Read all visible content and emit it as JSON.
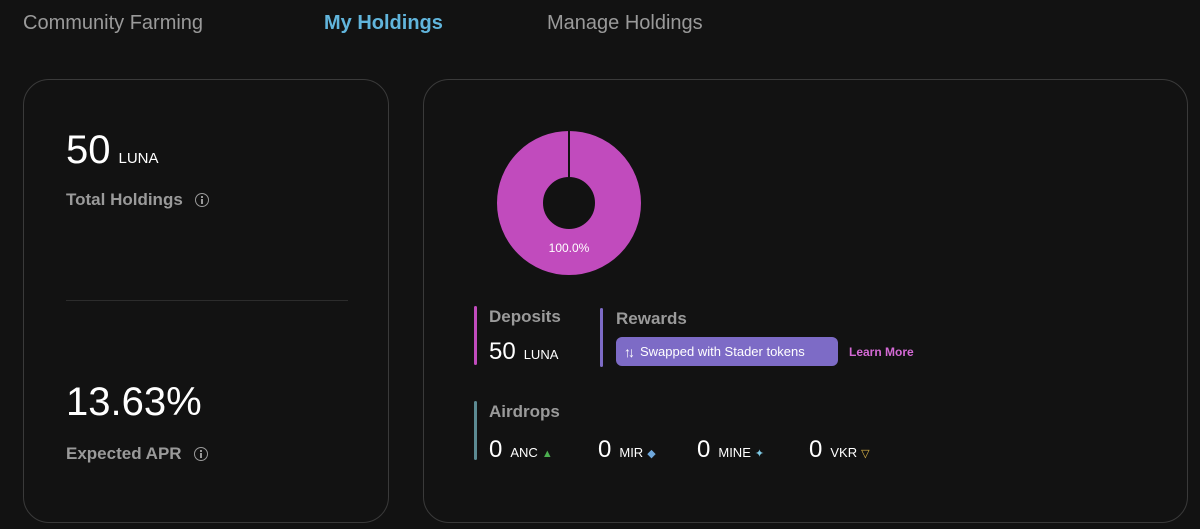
{
  "tabs": [
    "Community Farming",
    "My Holdings",
    "Manage Holdings"
  ],
  "active_tab": "My Holdings",
  "summary": {
    "total_holdings_value": "50",
    "total_holdings_unit": "LUNA",
    "total_holdings_label": "Total Holdings",
    "apr_value": "13.63%",
    "apr_label": "Expected APR"
  },
  "chart_data": {
    "type": "pie",
    "values": [
      100.0
    ],
    "data_labels": [
      "100.0%"
    ],
    "colors": [
      "#c14bbd"
    ]
  },
  "deposits": {
    "title": "Deposits",
    "value": "50",
    "unit": "LUNA",
    "color": "#c14bbd"
  },
  "rewards": {
    "title": "Rewards",
    "pill_text": "Swapped with Stader tokens",
    "link": "Learn More",
    "color": "#7d6bc6"
  },
  "airdrops": {
    "title": "Airdrops",
    "color": "#5c8a92",
    "items": [
      {
        "value": "0",
        "token": "ANC",
        "icon": "anc-icon",
        "icon_color": "#4caf50"
      },
      {
        "value": "0",
        "token": "MIR",
        "icon": "mir-icon",
        "icon_color": "#6fa8dc"
      },
      {
        "value": "0",
        "token": "MINE",
        "icon": "mine-icon",
        "icon_color": "#7ec8e3"
      },
      {
        "value": "0",
        "token": "VKR",
        "icon": "vkr-icon",
        "icon_color": "#e0b84a"
      }
    ]
  }
}
